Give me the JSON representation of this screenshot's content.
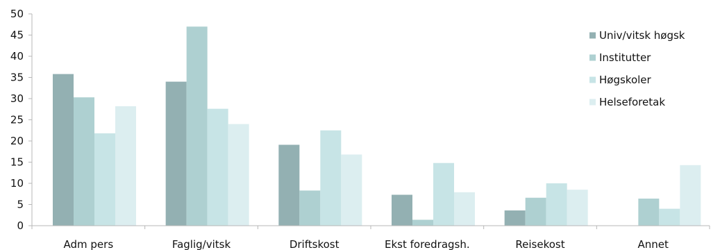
{
  "chart_data": {
    "type": "bar",
    "title": "",
    "xlabel": "",
    "ylabel": "",
    "categories": [
      "Adm pers",
      "Faglig/vitsk",
      "Driftskost",
      "Ekst foredragsh.",
      "Reisekost",
      "Annet"
    ],
    "series": [
      {
        "name": "Univ/vitsk høgsk",
        "values": [
          35.8,
          34.0,
          19.1,
          7.3,
          3.6,
          0
        ],
        "color": "#93b0b2"
      },
      {
        "name": "Institutter",
        "values": [
          30.3,
          47.0,
          8.3,
          1.4,
          6.6,
          6.4
        ],
        "color": "#aed0d1"
      },
      {
        "name": "Høgskoler",
        "values": [
          21.8,
          27.6,
          22.5,
          14.8,
          10.0,
          4.0
        ],
        "color": "#c7e4e6"
      },
      {
        "name": "Helseforetak",
        "values": [
          28.2,
          24.0,
          16.8,
          7.9,
          8.5,
          14.3
        ],
        "color": "#dceef0"
      }
    ],
    "ylim": [
      0,
      50
    ],
    "yticks": [
      0,
      5,
      10,
      15,
      20,
      25,
      30,
      35,
      40,
      45,
      50
    ],
    "grid": false,
    "legend_position": "right",
    "axis_color": "#b7b7b7"
  }
}
